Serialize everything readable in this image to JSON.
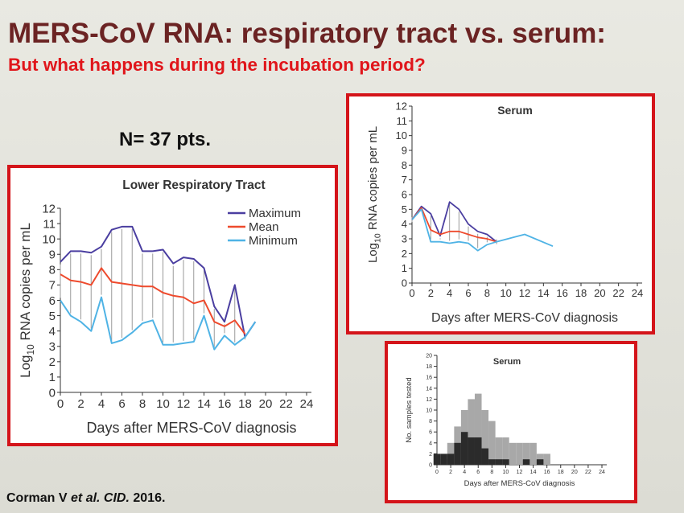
{
  "slide": {
    "title": "MERS-CoV RNA: respiratory tract vs. serum:",
    "subtitle": "But what happens during the incubation period?",
    "n_label": "N= 37 pts.",
    "citation": {
      "author": "Corman V ",
      "etal": "et al. CID.",
      "year": " 2016."
    }
  },
  "colors": {
    "maximum": "#4a3ea0",
    "mean": "#ee4a2d",
    "minimum": "#4fb3e5",
    "frame": "#d4141a"
  },
  "chart_data": [
    {
      "type": "line",
      "title": "Lower Respiratory Tract",
      "xlabel": "Days after MERS-CoV diagnosis",
      "ylabel_parts": [
        "Log",
        "10",
        " RNA copies per mL"
      ],
      "xlim": [
        0,
        24
      ],
      "ylim": [
        0,
        12
      ],
      "xticks": [
        0,
        2,
        4,
        6,
        8,
        10,
        12,
        14,
        16,
        18,
        20,
        22,
        24
      ],
      "yticks": [
        0,
        1,
        2,
        3,
        4,
        5,
        6,
        7,
        8,
        9,
        10,
        11,
        12
      ],
      "legend": "top-right",
      "error_bars": true,
      "series": [
        {
          "name": "Maximum",
          "color": "maximum",
          "points": [
            [
              0,
              8.5
            ],
            [
              1,
              9.2
            ],
            [
              2,
              9.2
            ],
            [
              3,
              9.1
            ],
            [
              4,
              9.5
            ],
            [
              5,
              10.6
            ],
            [
              6,
              10.8
            ],
            [
              7,
              10.8
            ],
            [
              8,
              9.2
            ],
            [
              9,
              9.2
            ],
            [
              10,
              9.3
            ],
            [
              11,
              8.4
            ],
            [
              12,
              8.8
            ],
            [
              13,
              8.7
            ],
            [
              14,
              8.1
            ],
            [
              15,
              5.6
            ],
            [
              16,
              4.6
            ],
            [
              17,
              7.0
            ],
            [
              18,
              3.6
            ],
            [
              19,
              4.6
            ]
          ]
        },
        {
          "name": "Mean",
          "color": "mean",
          "points": [
            [
              0,
              7.7
            ],
            [
              1,
              7.3
            ],
            [
              2,
              7.2
            ],
            [
              3,
              7.0
            ],
            [
              4,
              8.1
            ],
            [
              5,
              7.2
            ],
            [
              6,
              7.1
            ],
            [
              7,
              7.0
            ],
            [
              8,
              6.9
            ],
            [
              9,
              6.9
            ],
            [
              10,
              6.5
            ],
            [
              11,
              6.3
            ],
            [
              12,
              6.2
            ],
            [
              13,
              5.8
            ],
            [
              14,
              6.0
            ],
            [
              15,
              4.6
            ],
            [
              16,
              4.3
            ],
            [
              17,
              4.7
            ],
            [
              18,
              3.8
            ]
          ]
        },
        {
          "name": "Minimum",
          "color": "minimum",
          "points": [
            [
              0,
              6.0
            ],
            [
              1,
              5.0
            ],
            [
              2,
              4.6
            ],
            [
              3,
              4.0
            ],
            [
              4,
              6.2
            ],
            [
              5,
              3.2
            ],
            [
              6,
              3.4
            ],
            [
              7,
              3.9
            ],
            [
              8,
              4.5
            ],
            [
              9,
              4.7
            ],
            [
              10,
              3.1
            ],
            [
              11,
              3.1
            ],
            [
              12,
              3.2
            ],
            [
              13,
              3.3
            ],
            [
              14,
              5.0
            ],
            [
              15,
              2.8
            ],
            [
              16,
              3.7
            ],
            [
              17,
              3.1
            ],
            [
              18,
              3.6
            ],
            [
              19,
              4.6
            ]
          ]
        }
      ]
    },
    {
      "type": "line",
      "title": "Serum",
      "xlabel": "Days after MERS-CoV diagnosis",
      "ylabel_parts": [
        "Log",
        "10",
        " RNA copies per mL"
      ],
      "xlim": [
        0,
        24
      ],
      "ylim": [
        0,
        12
      ],
      "xticks": [
        0,
        2,
        4,
        6,
        8,
        10,
        12,
        14,
        16,
        18,
        20,
        22,
        24
      ],
      "yticks": [
        0,
        1,
        2,
        3,
        4,
        5,
        6,
        7,
        8,
        9,
        10,
        11,
        12
      ],
      "error_bars": true,
      "series": [
        {
          "name": "Maximum",
          "color": "maximum",
          "points": [
            [
              0,
              4.3
            ],
            [
              1,
              5.2
            ],
            [
              2,
              4.7
            ],
            [
              3,
              3.2
            ],
            [
              4,
              5.5
            ],
            [
              5,
              5.0
            ],
            [
              6,
              4.0
            ],
            [
              7,
              3.5
            ],
            [
              8,
              3.3
            ],
            [
              9,
              2.8
            ]
          ]
        },
        {
          "name": "Mean",
          "color": "mean",
          "points": [
            [
              0,
              4.3
            ],
            [
              1,
              5.1
            ],
            [
              2,
              3.6
            ],
            [
              3,
              3.3
            ],
            [
              4,
              3.5
            ],
            [
              5,
              3.5
            ],
            [
              6,
              3.3
            ],
            [
              7,
              3.1
            ],
            [
              8,
              3.0
            ],
            [
              9,
              2.8
            ]
          ]
        },
        {
          "name": "Minimum",
          "color": "minimum",
          "points": [
            [
              0,
              4.3
            ],
            [
              1,
              5.0
            ],
            [
              2,
              2.8
            ],
            [
              3,
              2.8
            ],
            [
              4,
              2.7
            ],
            [
              5,
              2.8
            ],
            [
              6,
              2.7
            ],
            [
              7,
              2.2
            ],
            [
              8,
              2.6
            ],
            [
              9,
              2.8
            ],
            [
              12,
              3.3
            ],
            [
              15,
              2.5
            ]
          ]
        }
      ]
    },
    {
      "type": "bar",
      "title": "Serum",
      "xlabel": "Days after MERS-CoV diagnosis",
      "ylabel": "No. samples tested",
      "xlim": [
        0,
        24
      ],
      "ylim": [
        0,
        20
      ],
      "xticks": [
        0,
        2,
        4,
        6,
        8,
        10,
        12,
        14,
        16,
        18,
        20,
        22,
        24
      ],
      "yticks": [
        0,
        2,
        4,
        6,
        8,
        10,
        12,
        14,
        16,
        18,
        20
      ],
      "days": [
        0,
        1,
        2,
        3,
        4,
        5,
        6,
        7,
        8,
        9,
        10,
        11,
        12,
        13,
        14,
        15,
        16,
        17
      ],
      "series": [
        {
          "name": "",
          "color": "#a8a8a8",
          "values": [
            0,
            1,
            4,
            7,
            10,
            12,
            13,
            10,
            8,
            5,
            5,
            4,
            4,
            4,
            4,
            2,
            2,
            0
          ]
        },
        {
          "name": "",
          "color": "#2b2b2b",
          "values": [
            2,
            2,
            2,
            4,
            6,
            5,
            5,
            3,
            1,
            1,
            1,
            0,
            0,
            1,
            0,
            1,
            0,
            0
          ]
        }
      ]
    }
  ]
}
